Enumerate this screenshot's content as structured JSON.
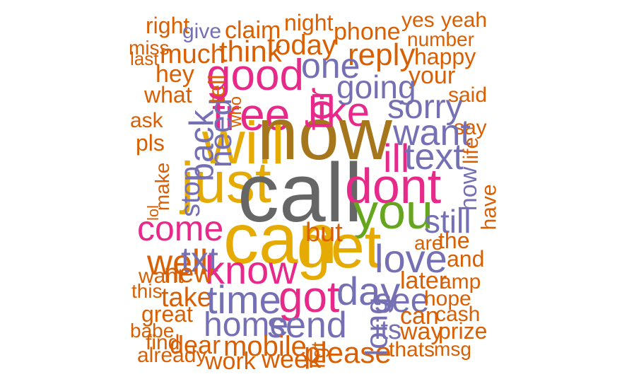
{
  "palette": {
    "orange": "#D95F02",
    "purple": "#7570B3",
    "magenta": "#E7298A",
    "green": "#66A61E",
    "gold": "#E6AB02",
    "brown": "#A6761D",
    "gray": "#666666"
  },
  "words": [
    {
      "text": "right",
      "color": "#D95F02"
    },
    {
      "text": "give",
      "color": "#7570B3"
    },
    {
      "text": "claim",
      "color": "#D95F02"
    },
    {
      "text": "night",
      "color": "#D95F02"
    },
    {
      "text": "phone",
      "color": "#D95F02"
    },
    {
      "text": "yes",
      "color": "#D95F02"
    },
    {
      "text": "yeah",
      "color": "#D95F02"
    },
    {
      "text": "number",
      "color": "#D95F02"
    },
    {
      "text": "miss",
      "color": "#D95F02"
    },
    {
      "text": "last",
      "color": "#D95F02"
    },
    {
      "text": "much",
      "color": "#D95F02"
    },
    {
      "text": "think",
      "color": "#D95F02"
    },
    {
      "text": "today",
      "color": "#D95F02"
    },
    {
      "text": "reply",
      "color": "#D95F02"
    },
    {
      "text": "happy",
      "color": "#D95F02"
    },
    {
      "text": "one",
      "color": "#7570B3"
    },
    {
      "text": "hey",
      "color": "#D95F02"
    },
    {
      "text": "good",
      "color": "#E7298A"
    },
    {
      "text": "your",
      "color": "#D95F02"
    },
    {
      "text": "going",
      "color": "#7570B3"
    },
    {
      "text": "what",
      "color": "#D95F02"
    },
    {
      "text": "said",
      "color": "#D95F02"
    },
    {
      "text": "ask",
      "color": "#D95F02"
    },
    {
      "text": "free",
      "color": "#E7298A"
    },
    {
      "text": "like",
      "color": "#E7298A"
    },
    {
      "text": "sorry",
      "color": "#7570B3"
    },
    {
      "text": "say",
      "color": "#D95F02"
    },
    {
      "text": "pls",
      "color": "#D95F02"
    },
    {
      "text": "will",
      "color": "#E6AB02"
    },
    {
      "text": "now",
      "color": "#A6761D"
    },
    {
      "text": "want",
      "color": "#7570B3"
    },
    {
      "text": "ill",
      "color": "#E7298A"
    },
    {
      "text": "text",
      "color": "#7570B3"
    },
    {
      "text": "just",
      "color": "#E6AB02"
    },
    {
      "text": "call",
      "color": "#666666"
    },
    {
      "text": "dont",
      "color": "#E7298A"
    },
    {
      "text": "you",
      "color": "#66A61E"
    },
    {
      "text": "can",
      "color": "#E6AB02"
    },
    {
      "text": "get",
      "color": "#E6AB02"
    },
    {
      "text": "come",
      "color": "#E7298A"
    },
    {
      "text": "but",
      "color": "#D95F02"
    },
    {
      "text": "still",
      "color": "#7570B3"
    },
    {
      "text": "are",
      "color": "#D95F02"
    },
    {
      "text": "the",
      "color": "#D95F02"
    },
    {
      "text": "and",
      "color": "#D95F02"
    },
    {
      "text": "well",
      "color": "#D95F02"
    },
    {
      "text": "txt",
      "color": "#7570B3"
    },
    {
      "text": "know",
      "color": "#E7298A"
    },
    {
      "text": "love",
      "color": "#7570B3"
    },
    {
      "text": "want",
      "color": "#D95F02"
    },
    {
      "text": "new",
      "color": "#D95F02"
    },
    {
      "text": "later",
      "color": "#D95F02"
    },
    {
      "text": "amp",
      "color": "#D95F02"
    },
    {
      "text": "this",
      "color": "#D95F02"
    },
    {
      "text": "take",
      "color": "#D95F02"
    },
    {
      "text": "time",
      "color": "#7570B3"
    },
    {
      "text": "got",
      "color": "#E7298A"
    },
    {
      "text": "day",
      "color": "#7570B3"
    },
    {
      "text": "see",
      "color": "#7570B3"
    },
    {
      "text": "hope",
      "color": "#D95F02"
    },
    {
      "text": "great",
      "color": "#D95F02"
    },
    {
      "text": "can",
      "color": "#D95F02"
    },
    {
      "text": "cash",
      "color": "#D95F02"
    },
    {
      "text": "home",
      "color": "#7570B3"
    },
    {
      "text": "send",
      "color": "#7570B3"
    },
    {
      "text": "its",
      "color": "#7570B3"
    },
    {
      "text": "way",
      "color": "#D95F02"
    },
    {
      "text": "prize",
      "color": "#D95F02"
    },
    {
      "text": "babe",
      "color": "#D95F02"
    },
    {
      "text": "find",
      "color": "#D95F02"
    },
    {
      "text": "dear",
      "color": "#D95F02"
    },
    {
      "text": "mobile",
      "color": "#D95F02"
    },
    {
      "text": "please",
      "color": "#D95F02"
    },
    {
      "text": "thats",
      "color": "#D95F02"
    },
    {
      "text": "msg",
      "color": "#D95F02"
    },
    {
      "text": "already",
      "color": "#D95F02"
    },
    {
      "text": "work",
      "color": "#D95F02"
    },
    {
      "text": "week",
      "color": "#D95F02"
    },
    {
      "text": "back",
      "color": "#7570B3"
    },
    {
      "text": "need",
      "color": "#7570B3"
    },
    {
      "text": "tell",
      "color": "#D95F02"
    },
    {
      "text": "stop",
      "color": "#7570B3"
    },
    {
      "text": "make",
      "color": "#D95F02"
    },
    {
      "text": "lol",
      "color": "#D95F02"
    },
    {
      "text": "for",
      "color": "#E7298A"
    },
    {
      "text": "how",
      "color": "#7570B3"
    },
    {
      "text": "life",
      "color": "#D95F02"
    },
    {
      "text": "have",
      "color": "#D95F02"
    },
    {
      "text": "long",
      "color": "#7570B3"
    },
    {
      "text": "ltgt",
      "color": "#D95F02"
    },
    {
      "text": "who",
      "color": "#D95F02"
    }
  ]
}
